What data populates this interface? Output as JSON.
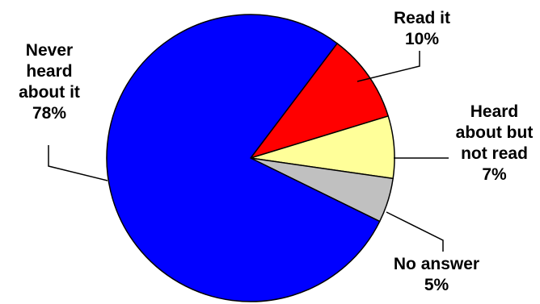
{
  "chart_data": {
    "type": "pie",
    "title": "",
    "slices": [
      {
        "label_lines": [
          "Read it",
          "10%"
        ],
        "value": 10,
        "color": "#ff0000"
      },
      {
        "label_lines": [
          "Heard",
          "about but",
          "not read",
          "7%"
        ],
        "value": 7,
        "color": "#ffff99"
      },
      {
        "label_lines": [
          "No answer",
          "5%"
        ],
        "value": 5,
        "color": "#c0c0c0"
      },
      {
        "label_lines": [
          "Never",
          "heard",
          "about it",
          "78%"
        ],
        "value": 78,
        "color": "#0000ff"
      }
    ]
  }
}
